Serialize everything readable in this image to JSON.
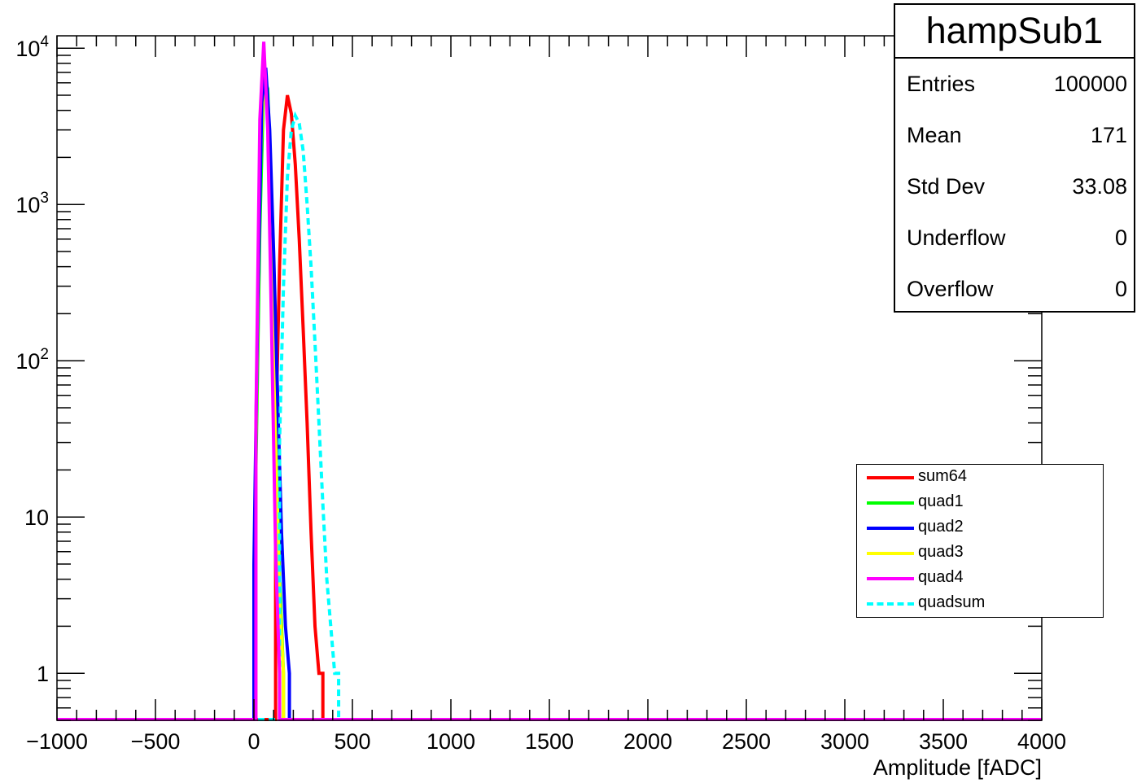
{
  "chart_data": {
    "type": "line",
    "title": "",
    "xlabel": "Amplitude [fADC]",
    "ylabel": "",
    "xlim": [
      -1000,
      4000
    ],
    "ylim": [
      0.5,
      12000
    ],
    "yscale": "log",
    "x_ticks": [
      "−1000",
      "−500",
      "0",
      "500",
      "1000",
      "1500",
      "2000",
      "2500",
      "3000",
      "3500",
      "4000"
    ],
    "y_ticks": [
      {
        "value": 1,
        "label": "1",
        "exp": ""
      },
      {
        "value": 10,
        "label": "10",
        "exp": ""
      },
      {
        "value": 100,
        "label": "10",
        "exp": "2"
      },
      {
        "value": 1000,
        "label": "10",
        "exp": "3"
      },
      {
        "value": 10000,
        "label": "10",
        "exp": "4"
      }
    ],
    "grid": false,
    "legend_position": "right",
    "series": [
      {
        "name": "sum64",
        "color": "#ff0000",
        "dashed": false,
        "x": [
          110,
          130,
          150,
          170,
          190,
          210,
          230,
          250,
          270,
          290,
          310,
          330,
          350
        ],
        "y": [
          30,
          400,
          3000,
          5000,
          3800,
          1800,
          600,
          160,
          40,
          8,
          2,
          1,
          1
        ]
      },
      {
        "name": "quad1",
        "color": "#00ff00",
        "dashed": false,
        "x": [
          10,
          30,
          50,
          70,
          90,
          110,
          130,
          150
        ],
        "y": [
          20,
          700,
          6500,
          5500,
          900,
          60,
          4,
          1
        ]
      },
      {
        "name": "quad2",
        "color": "#0000ff",
        "dashed": false,
        "x": [
          0,
          20,
          40,
          60,
          80,
          100,
          120,
          140,
          160,
          180
        ],
        "y": [
          5,
          250,
          4500,
          7500,
          3000,
          500,
          60,
          8,
          2,
          1
        ]
      },
      {
        "name": "quad3",
        "color": "#ffff00",
        "dashed": false,
        "x": [
          10,
          30,
          50,
          70,
          90,
          110,
          130,
          150
        ],
        "y": [
          30,
          1500,
          7000,
          4000,
          700,
          40,
          3,
          1
        ]
      },
      {
        "name": "quad4",
        "color": "#ff00ff",
        "dashed": false,
        "x": [
          10,
          30,
          50,
          70,
          90,
          110,
          130
        ],
        "y": [
          40,
          3500,
          11000,
          3000,
          150,
          6,
          1
        ]
      },
      {
        "name": "quadsum",
        "color": "#00ffff",
        "dashed": true,
        "x": [
          130,
          150,
          170,
          190,
          210,
          230,
          250,
          270,
          290,
          310,
          330,
          350,
          370,
          390,
          410,
          430
        ],
        "y": [
          30,
          300,
          1500,
          3000,
          3700,
          3300,
          2200,
          1000,
          400,
          130,
          40,
          12,
          4,
          2,
          1,
          1
        ]
      }
    ]
  },
  "stats": {
    "title": "hampSub1",
    "rows": [
      {
        "label": "Entries",
        "value": "100000"
      },
      {
        "label": "Mean",
        "value": "171"
      },
      {
        "label": "Std Dev",
        "value": "33.08"
      },
      {
        "label": "Underflow",
        "value": "0"
      },
      {
        "label": "Overflow",
        "value": "0"
      }
    ]
  }
}
